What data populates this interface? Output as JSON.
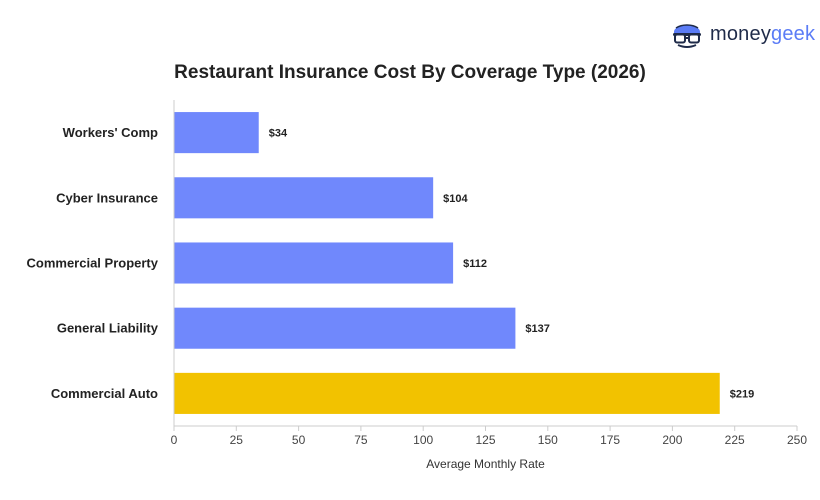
{
  "brand": {
    "name_main": "money",
    "name_accent": "geek",
    "logo_icon": "moneygeek-mascot-icon"
  },
  "chart_data": {
    "type": "bar",
    "orientation": "horizontal",
    "title": "Restaurant Insurance Cost By Coverage Type (2026)",
    "xlabel": "Average Monthly Rate",
    "ylabel": "",
    "categories": [
      "Workers' Comp",
      "Cyber Insurance",
      "Commercial Property",
      "General Liability",
      "Commercial Auto"
    ],
    "values": [
      34,
      104,
      112,
      137,
      219
    ],
    "data_labels": [
      "$34",
      "$104",
      "$112",
      "$137",
      "$219"
    ],
    "bar_colors": [
      "#7088fc",
      "#7088fc",
      "#7088fc",
      "#7088fc",
      "#f2c200"
    ],
    "xlim": [
      0,
      250
    ],
    "xticks": [
      0,
      25,
      50,
      75,
      100,
      125,
      150,
      175,
      200,
      225,
      250
    ],
    "grid": false,
    "legend": "none"
  }
}
